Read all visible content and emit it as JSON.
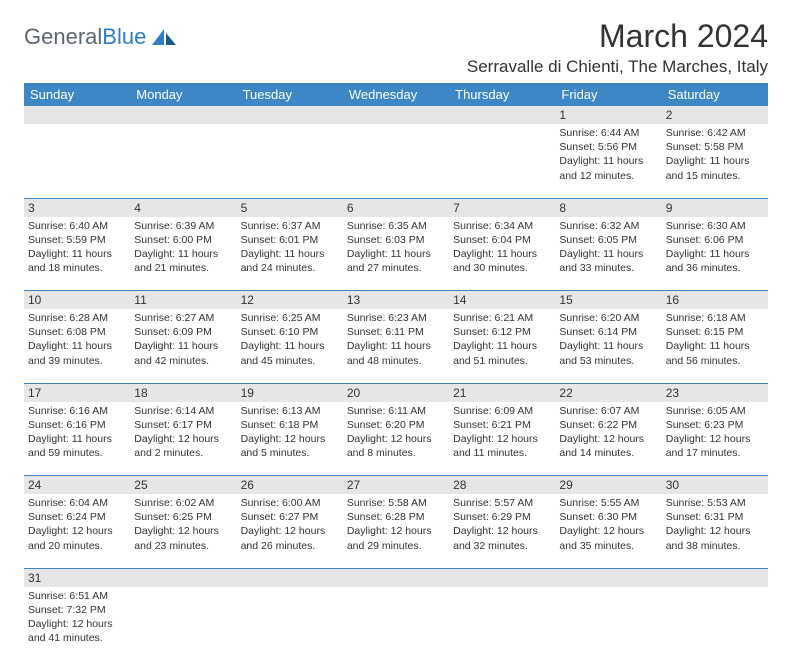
{
  "logo": {
    "text1": "General",
    "text2": "Blue"
  },
  "title": "March 2024",
  "location": "Serravalle di Chienti, The Marches, Italy",
  "headers": [
    "Sunday",
    "Monday",
    "Tuesday",
    "Wednesday",
    "Thursday",
    "Friday",
    "Saturday"
  ],
  "colors": {
    "header_bg": "#3d87c7",
    "header_text": "#ffffff",
    "daynum_bg": "#e6e6e6",
    "border": "#3d87c7",
    "logo_gray": "#5b6670",
    "logo_blue": "#2f7dc4",
    "text": "#333333",
    "background": "#ffffff"
  },
  "weeks": [
    {
      "nums": [
        "",
        "",
        "",
        "",
        "",
        "1",
        "2"
      ],
      "cells": [
        {},
        {},
        {},
        {},
        {},
        {
          "sunrise": "Sunrise: 6:44 AM",
          "sunset": "Sunset: 5:56 PM",
          "dl1": "Daylight: 11 hours",
          "dl2": "and 12 minutes."
        },
        {
          "sunrise": "Sunrise: 6:42 AM",
          "sunset": "Sunset: 5:58 PM",
          "dl1": "Daylight: 11 hours",
          "dl2": "and 15 minutes."
        }
      ]
    },
    {
      "nums": [
        "3",
        "4",
        "5",
        "6",
        "7",
        "8",
        "9"
      ],
      "cells": [
        {
          "sunrise": "Sunrise: 6:40 AM",
          "sunset": "Sunset: 5:59 PM",
          "dl1": "Daylight: 11 hours",
          "dl2": "and 18 minutes."
        },
        {
          "sunrise": "Sunrise: 6:39 AM",
          "sunset": "Sunset: 6:00 PM",
          "dl1": "Daylight: 11 hours",
          "dl2": "and 21 minutes."
        },
        {
          "sunrise": "Sunrise: 6:37 AM",
          "sunset": "Sunset: 6:01 PM",
          "dl1": "Daylight: 11 hours",
          "dl2": "and 24 minutes."
        },
        {
          "sunrise": "Sunrise: 6:35 AM",
          "sunset": "Sunset: 6:03 PM",
          "dl1": "Daylight: 11 hours",
          "dl2": "and 27 minutes."
        },
        {
          "sunrise": "Sunrise: 6:34 AM",
          "sunset": "Sunset: 6:04 PM",
          "dl1": "Daylight: 11 hours",
          "dl2": "and 30 minutes."
        },
        {
          "sunrise": "Sunrise: 6:32 AM",
          "sunset": "Sunset: 6:05 PM",
          "dl1": "Daylight: 11 hours",
          "dl2": "and 33 minutes."
        },
        {
          "sunrise": "Sunrise: 6:30 AM",
          "sunset": "Sunset: 6:06 PM",
          "dl1": "Daylight: 11 hours",
          "dl2": "and 36 minutes."
        }
      ]
    },
    {
      "nums": [
        "10",
        "11",
        "12",
        "13",
        "14",
        "15",
        "16"
      ],
      "cells": [
        {
          "sunrise": "Sunrise: 6:28 AM",
          "sunset": "Sunset: 6:08 PM",
          "dl1": "Daylight: 11 hours",
          "dl2": "and 39 minutes."
        },
        {
          "sunrise": "Sunrise: 6:27 AM",
          "sunset": "Sunset: 6:09 PM",
          "dl1": "Daylight: 11 hours",
          "dl2": "and 42 minutes."
        },
        {
          "sunrise": "Sunrise: 6:25 AM",
          "sunset": "Sunset: 6:10 PM",
          "dl1": "Daylight: 11 hours",
          "dl2": "and 45 minutes."
        },
        {
          "sunrise": "Sunrise: 6:23 AM",
          "sunset": "Sunset: 6:11 PM",
          "dl1": "Daylight: 11 hours",
          "dl2": "and 48 minutes."
        },
        {
          "sunrise": "Sunrise: 6:21 AM",
          "sunset": "Sunset: 6:12 PM",
          "dl1": "Daylight: 11 hours",
          "dl2": "and 51 minutes."
        },
        {
          "sunrise": "Sunrise: 6:20 AM",
          "sunset": "Sunset: 6:14 PM",
          "dl1": "Daylight: 11 hours",
          "dl2": "and 53 minutes."
        },
        {
          "sunrise": "Sunrise: 6:18 AM",
          "sunset": "Sunset: 6:15 PM",
          "dl1": "Daylight: 11 hours",
          "dl2": "and 56 minutes."
        }
      ]
    },
    {
      "nums": [
        "17",
        "18",
        "19",
        "20",
        "21",
        "22",
        "23"
      ],
      "cells": [
        {
          "sunrise": "Sunrise: 6:16 AM",
          "sunset": "Sunset: 6:16 PM",
          "dl1": "Daylight: 11 hours",
          "dl2": "and 59 minutes."
        },
        {
          "sunrise": "Sunrise: 6:14 AM",
          "sunset": "Sunset: 6:17 PM",
          "dl1": "Daylight: 12 hours",
          "dl2": "and 2 minutes."
        },
        {
          "sunrise": "Sunrise: 6:13 AM",
          "sunset": "Sunset: 6:18 PM",
          "dl1": "Daylight: 12 hours",
          "dl2": "and 5 minutes."
        },
        {
          "sunrise": "Sunrise: 6:11 AM",
          "sunset": "Sunset: 6:20 PM",
          "dl1": "Daylight: 12 hours",
          "dl2": "and 8 minutes."
        },
        {
          "sunrise": "Sunrise: 6:09 AM",
          "sunset": "Sunset: 6:21 PM",
          "dl1": "Daylight: 12 hours",
          "dl2": "and 11 minutes."
        },
        {
          "sunrise": "Sunrise: 6:07 AM",
          "sunset": "Sunset: 6:22 PM",
          "dl1": "Daylight: 12 hours",
          "dl2": "and 14 minutes."
        },
        {
          "sunrise": "Sunrise: 6:05 AM",
          "sunset": "Sunset: 6:23 PM",
          "dl1": "Daylight: 12 hours",
          "dl2": "and 17 minutes."
        }
      ]
    },
    {
      "nums": [
        "24",
        "25",
        "26",
        "27",
        "28",
        "29",
        "30"
      ],
      "cells": [
        {
          "sunrise": "Sunrise: 6:04 AM",
          "sunset": "Sunset: 6:24 PM",
          "dl1": "Daylight: 12 hours",
          "dl2": "and 20 minutes."
        },
        {
          "sunrise": "Sunrise: 6:02 AM",
          "sunset": "Sunset: 6:25 PM",
          "dl1": "Daylight: 12 hours",
          "dl2": "and 23 minutes."
        },
        {
          "sunrise": "Sunrise: 6:00 AM",
          "sunset": "Sunset: 6:27 PM",
          "dl1": "Daylight: 12 hours",
          "dl2": "and 26 minutes."
        },
        {
          "sunrise": "Sunrise: 5:58 AM",
          "sunset": "Sunset: 6:28 PM",
          "dl1": "Daylight: 12 hours",
          "dl2": "and 29 minutes."
        },
        {
          "sunrise": "Sunrise: 5:57 AM",
          "sunset": "Sunset: 6:29 PM",
          "dl1": "Daylight: 12 hours",
          "dl2": "and 32 minutes."
        },
        {
          "sunrise": "Sunrise: 5:55 AM",
          "sunset": "Sunset: 6:30 PM",
          "dl1": "Daylight: 12 hours",
          "dl2": "and 35 minutes."
        },
        {
          "sunrise": "Sunrise: 5:53 AM",
          "sunset": "Sunset: 6:31 PM",
          "dl1": "Daylight: 12 hours",
          "dl2": "and 38 minutes."
        }
      ]
    },
    {
      "nums": [
        "31",
        "",
        "",
        "",
        "",
        "",
        ""
      ],
      "cells": [
        {
          "sunrise": "Sunrise: 6:51 AM",
          "sunset": "Sunset: 7:32 PM",
          "dl1": "Daylight: 12 hours",
          "dl2": "and 41 minutes."
        },
        {},
        {},
        {},
        {},
        {},
        {}
      ],
      "last": true
    }
  ]
}
